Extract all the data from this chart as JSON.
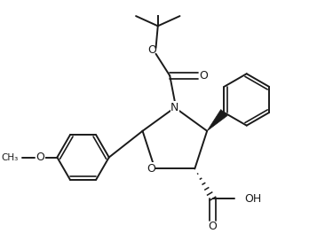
{
  "background_color": "#ffffff",
  "line_color": "#1a1a1a",
  "lw": 1.4,
  "figsize": [
    3.66,
    2.81
  ],
  "dpi": 100,
  "xlim": [
    -1.6,
    1.5
  ],
  "ylim": [
    -1.05,
    1.15
  ]
}
